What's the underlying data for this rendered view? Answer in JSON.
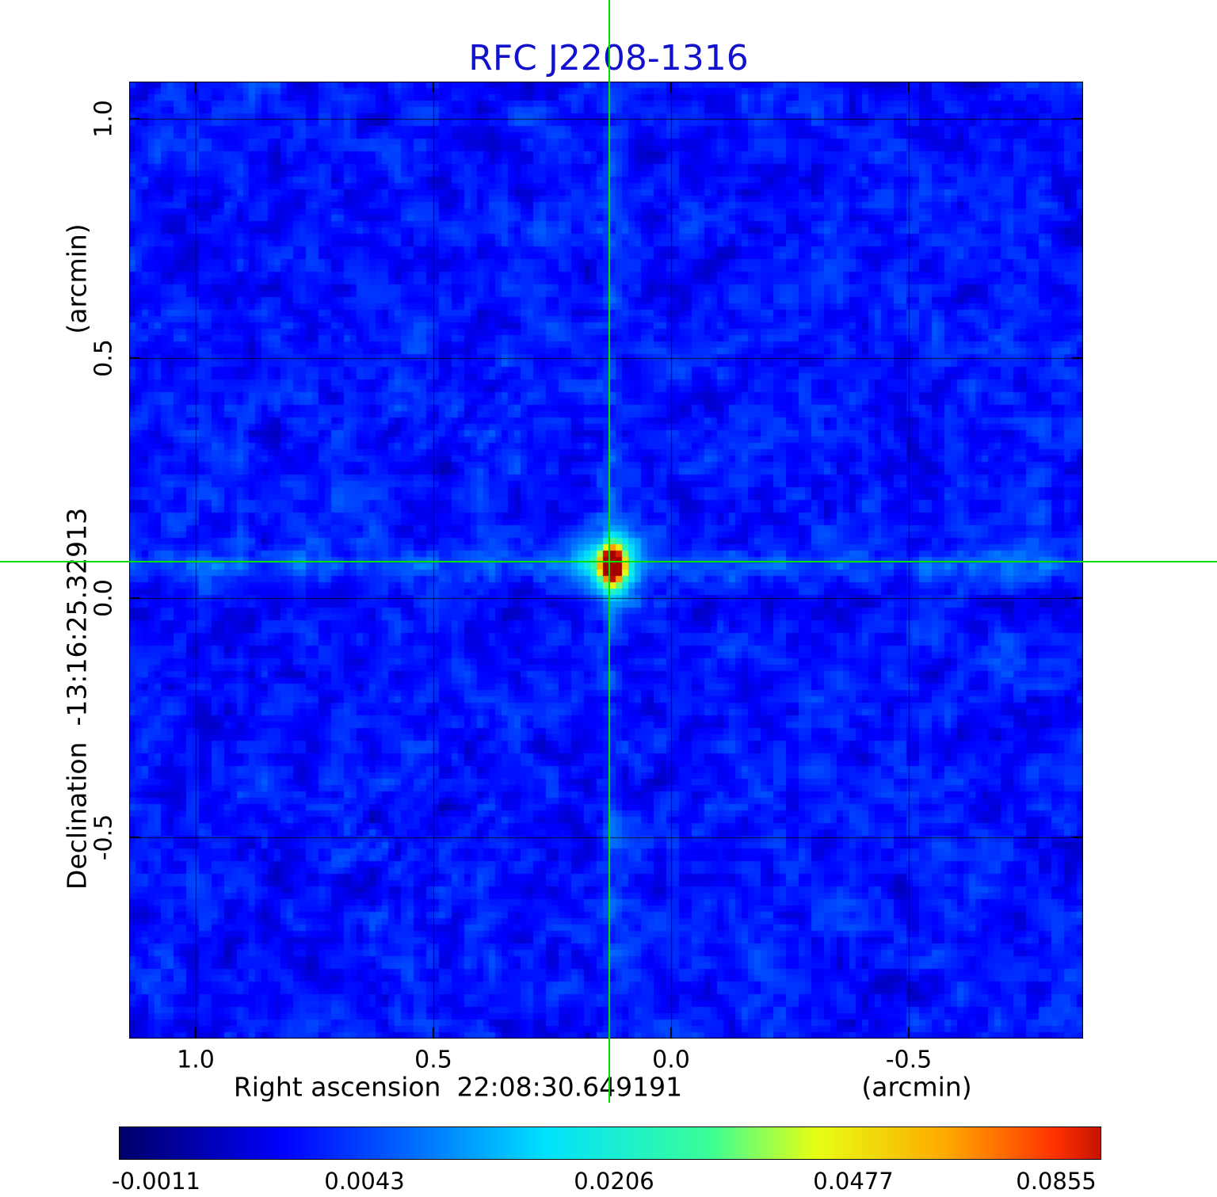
{
  "title": {
    "text": "RFC J2208-1316",
    "color": "#1212cc"
  },
  "axes": {
    "x": {
      "name": "Right ascension",
      "coordinate": "22:08:30.649191",
      "unit": "(arcmin)",
      "tick_labels": [
        "1.0",
        "0.5",
        "0.0",
        "-0.5"
      ]
    },
    "y": {
      "name": "Declination",
      "coordinate": "-13:16:25.32913",
      "unit": "(arcmin)",
      "tick_labels": [
        "1.0",
        "0.5",
        "0.0",
        "-0.5"
      ]
    }
  },
  "colorbar": {
    "tick_labels": [
      "-0.0011",
      "0.0043",
      "0.0206",
      "0.0477",
      "0.0855"
    ]
  },
  "chart_data": {
    "type": "heatmap",
    "title": "RFC J2208-1316",
    "xlabel": "Right ascension 22:08:30.649191 (arcmin)",
    "ylabel": "Declination -13:16:25.32913 (arcmin)",
    "x_range": [
      1.14,
      -0.867
    ],
    "y_range": [
      -0.92,
      1.078
    ],
    "x_ticks": [
      1.0,
      0.5,
      0.0,
      -0.5
    ],
    "y_ticks": [
      1.0,
      0.5,
      0.0,
      -0.5
    ],
    "grid": true,
    "colormap": "jet",
    "colorbar_values": [
      -0.0011,
      0.0043,
      0.0206,
      0.0477,
      0.0855
    ],
    "intensity_min": -0.0011,
    "intensity_peak": 0.0855,
    "background": {
      "description": "blue noise field with faint diagonal sidelobe ripples",
      "mean_level": 0.002
    },
    "source": {
      "x_arcmin": 0.13,
      "y_arcmin": 0.075,
      "peak_value": 0.0855,
      "shape": "elliptical-gaussian",
      "elongation": "vertical"
    },
    "crosshair": {
      "x_arcmin": 0.13,
      "y_arcmin": 0.075,
      "color": "#00e000"
    }
  }
}
